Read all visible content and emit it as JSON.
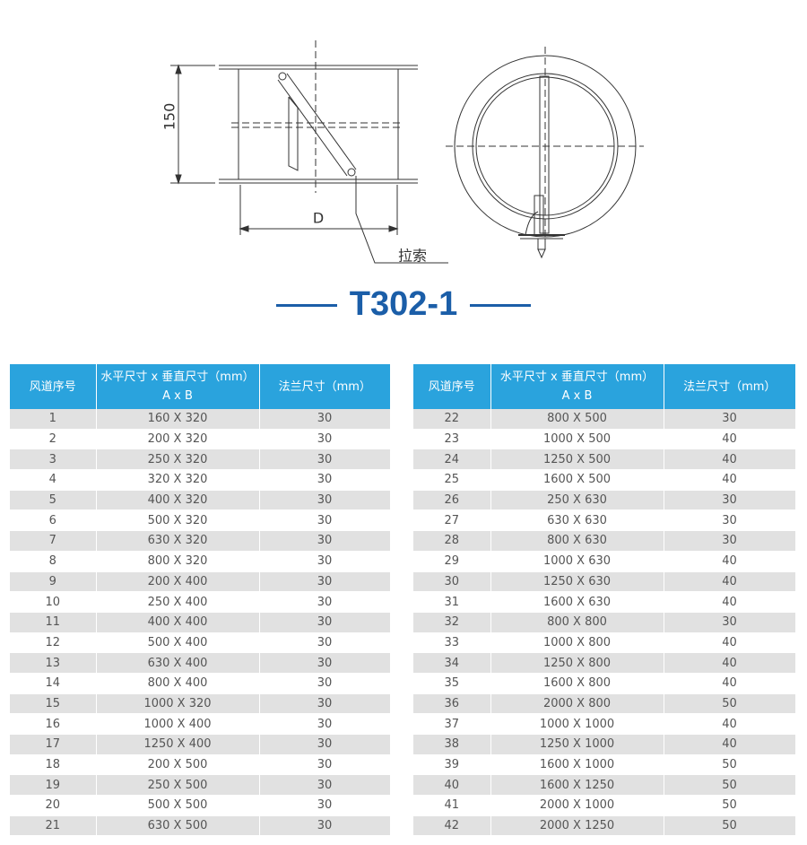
{
  "drawing": {
    "height_label": "150",
    "width_label": "D",
    "cable_label": "拉索"
  },
  "title": "T302-1",
  "tables": [
    {
      "header": [
        "风道序号",
        "水平尺寸 x 垂直尺寸（mm）",
        "A x B",
        "法兰尺寸（mm）"
      ],
      "rows": [
        [
          1,
          "160 X 320",
          30
        ],
        [
          2,
          "200 X 320",
          30
        ],
        [
          3,
          "250 X 320",
          30
        ],
        [
          4,
          "320 X 320",
          30
        ],
        [
          5,
          "400 X 320",
          30
        ],
        [
          6,
          "500 X 320",
          30
        ],
        [
          7,
          "630 X 320",
          30
        ],
        [
          8,
          "800 X 320",
          30
        ],
        [
          9,
          "200 X 400",
          30
        ],
        [
          10,
          "250 X 400",
          30
        ],
        [
          11,
          "400 X 400",
          30
        ],
        [
          12,
          "500 X 400",
          30
        ],
        [
          13,
          "630 X 400",
          30
        ],
        [
          14,
          "800 X 400",
          30
        ],
        [
          15,
          "1000 X 320",
          30
        ],
        [
          16,
          "1000 X 400",
          30
        ],
        [
          17,
          "1250 X 400",
          30
        ],
        [
          18,
          "200 X 500",
          30
        ],
        [
          19,
          "250 X 500",
          30
        ],
        [
          20,
          "500 X 500",
          30
        ],
        [
          21,
          "630 X 500",
          30
        ]
      ]
    },
    {
      "header": [
        "风道序号",
        "水平尺寸 x 垂直尺寸（mm）",
        "A x B",
        "法兰尺寸（mm）"
      ],
      "rows": [
        [
          22,
          "800 X 500",
          30
        ],
        [
          23,
          "1000 X 500",
          40
        ],
        [
          24,
          "1250 X 500",
          40
        ],
        [
          25,
          "1600 X 500",
          40
        ],
        [
          26,
          "250 X 630",
          30
        ],
        [
          27,
          "630 X 630",
          30
        ],
        [
          28,
          "800 X 630",
          30
        ],
        [
          29,
          "1000 X 630",
          40
        ],
        [
          30,
          "1250 X 630",
          40
        ],
        [
          31,
          "1600 X 630",
          40
        ],
        [
          32,
          "800 X 800",
          30
        ],
        [
          33,
          "1000 X 800",
          40
        ],
        [
          34,
          "1250 X 800",
          40
        ],
        [
          35,
          "1600 X 800",
          40
        ],
        [
          36,
          "2000 X 800",
          50
        ],
        [
          37,
          "1000 X 1000",
          40
        ],
        [
          38,
          "1250 X 1000",
          40
        ],
        [
          39,
          "1600 X 1000",
          50
        ],
        [
          40,
          "1600 X 1250",
          50
        ],
        [
          41,
          "2000 X 1000",
          50
        ],
        [
          42,
          "2000 X 1250",
          50
        ]
      ]
    }
  ]
}
